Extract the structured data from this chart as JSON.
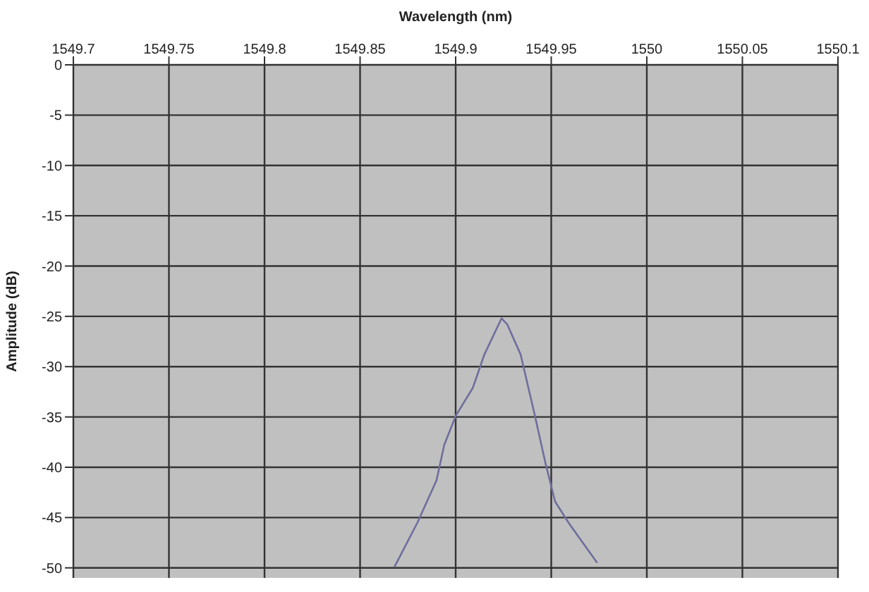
{
  "chart_data": {
    "type": "line",
    "xlabel": "Wavelength (nm)",
    "ylabel": "Amplitude (dB)",
    "xlim": [
      1549.7,
      1550.1
    ],
    "xticks": [
      1549.7,
      1549.75,
      1549.8,
      1549.85,
      1549.9,
      1549.95,
      1550,
      1550.05,
      1550.1
    ],
    "ylim": [
      -51,
      0
    ],
    "yticks": [
      0,
      -5,
      -10,
      -15,
      -20,
      -25,
      -30,
      -35,
      -40,
      -45,
      -50
    ],
    "grid": true,
    "marker": "none",
    "line_style": "solid",
    "series": [
      {
        "color": "#6e6e9e",
        "x": [
          1549.868,
          1549.88,
          1549.89,
          1549.894,
          1549.9,
          1549.909,
          1549.915,
          1549.924,
          1549.927,
          1549.934,
          1549.941,
          1549.947,
          1549.952,
          1549.959,
          1549.974
        ],
        "values": [
          -49.9,
          -45.5,
          -41.3,
          -37.8,
          -34.9,
          -32.1,
          -28.8,
          -25.2,
          -25.8,
          -28.8,
          -34.5,
          -39.6,
          -43.4,
          -45.5,
          -49.5
        ]
      }
    ]
  }
}
